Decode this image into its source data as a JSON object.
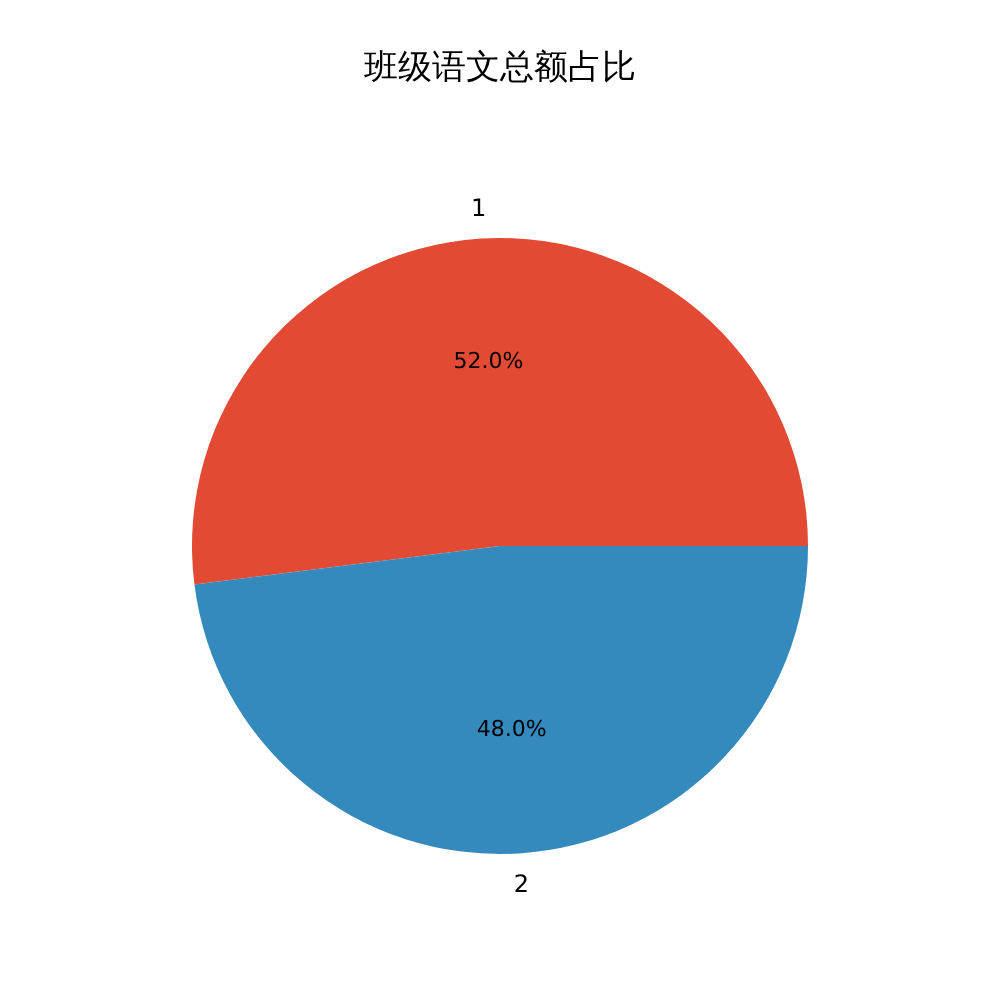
{
  "chart_data": {
    "type": "pie",
    "title": "班级语文总额占比",
    "categories": [
      "1",
      "2"
    ],
    "values": [
      52.0,
      48.0
    ],
    "colors": [
      "#e24a33",
      "#348abd"
    ],
    "value_labels": [
      "52.0%",
      "48.0%"
    ],
    "legend": false
  }
}
